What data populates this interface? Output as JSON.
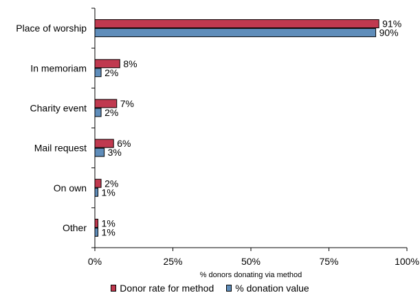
{
  "chart_data": {
    "type": "bar",
    "orientation": "horizontal",
    "categories": [
      "Place of worship",
      "In memoriam",
      "Charity event",
      "Mail request",
      "On own",
      "Other"
    ],
    "series": [
      {
        "name": "Donor rate for method",
        "values": [
          91,
          8,
          7,
          6,
          2,
          1
        ],
        "color": "#c0394f"
      },
      {
        "name": "% donation value",
        "values": [
          90,
          2,
          2,
          3,
          1,
          1
        ],
        "color": "#5f8dba"
      }
    ],
    "value_labels": [
      [
        "91%",
        "8%",
        "7%",
        "6%",
        "2%",
        "1%"
      ],
      [
        "90%",
        "2%",
        "2%",
        "3%",
        "1%",
        "1%"
      ]
    ],
    "xlabel": "% donors donating via method",
    "xlim": [
      0,
      100
    ],
    "xticks": [
      0,
      25,
      50,
      75,
      100
    ],
    "xtick_labels": [
      "0%",
      "25%",
      "50%",
      "75%",
      "100%"
    ],
    "grid": false,
    "legend_position": "bottom"
  }
}
